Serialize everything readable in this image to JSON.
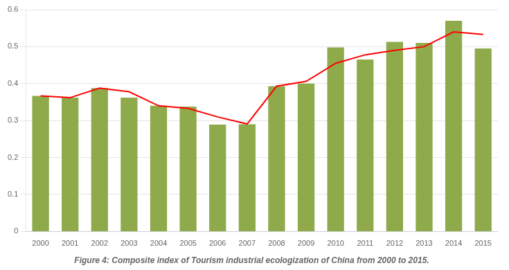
{
  "chart_data": {
    "type": "bar",
    "title": "Figure 4: Composite index of Tourism industrial ecologization of China from 2000 to 2015.",
    "categories": [
      "2000",
      "2001",
      "2002",
      "2003",
      "2004",
      "2005",
      "2006",
      "2007",
      "2008",
      "2009",
      "2010",
      "2011",
      "2012",
      "2013",
      "2014",
      "2015"
    ],
    "series": [
      {
        "type": "bar",
        "color": "#8faa4b",
        "values": [
          0.367,
          0.362,
          0.388,
          0.362,
          0.34,
          0.338,
          0.289,
          0.29,
          0.393,
          0.4,
          0.498,
          0.465,
          0.513,
          0.51,
          0.57,
          0.495
        ]
      },
      {
        "type": "line",
        "color": "#ff0000",
        "values": [
          0.367,
          0.362,
          0.388,
          0.378,
          0.34,
          0.333,
          0.31,
          0.291,
          0.393,
          0.406,
          0.455,
          0.478,
          0.49,
          0.5,
          0.54,
          0.533
        ]
      }
    ],
    "ylim": [
      0,
      0.6
    ],
    "yticks": [
      0,
      0.1,
      0.2,
      0.3,
      0.4,
      0.5,
      0.6
    ],
    "grid": "y"
  }
}
